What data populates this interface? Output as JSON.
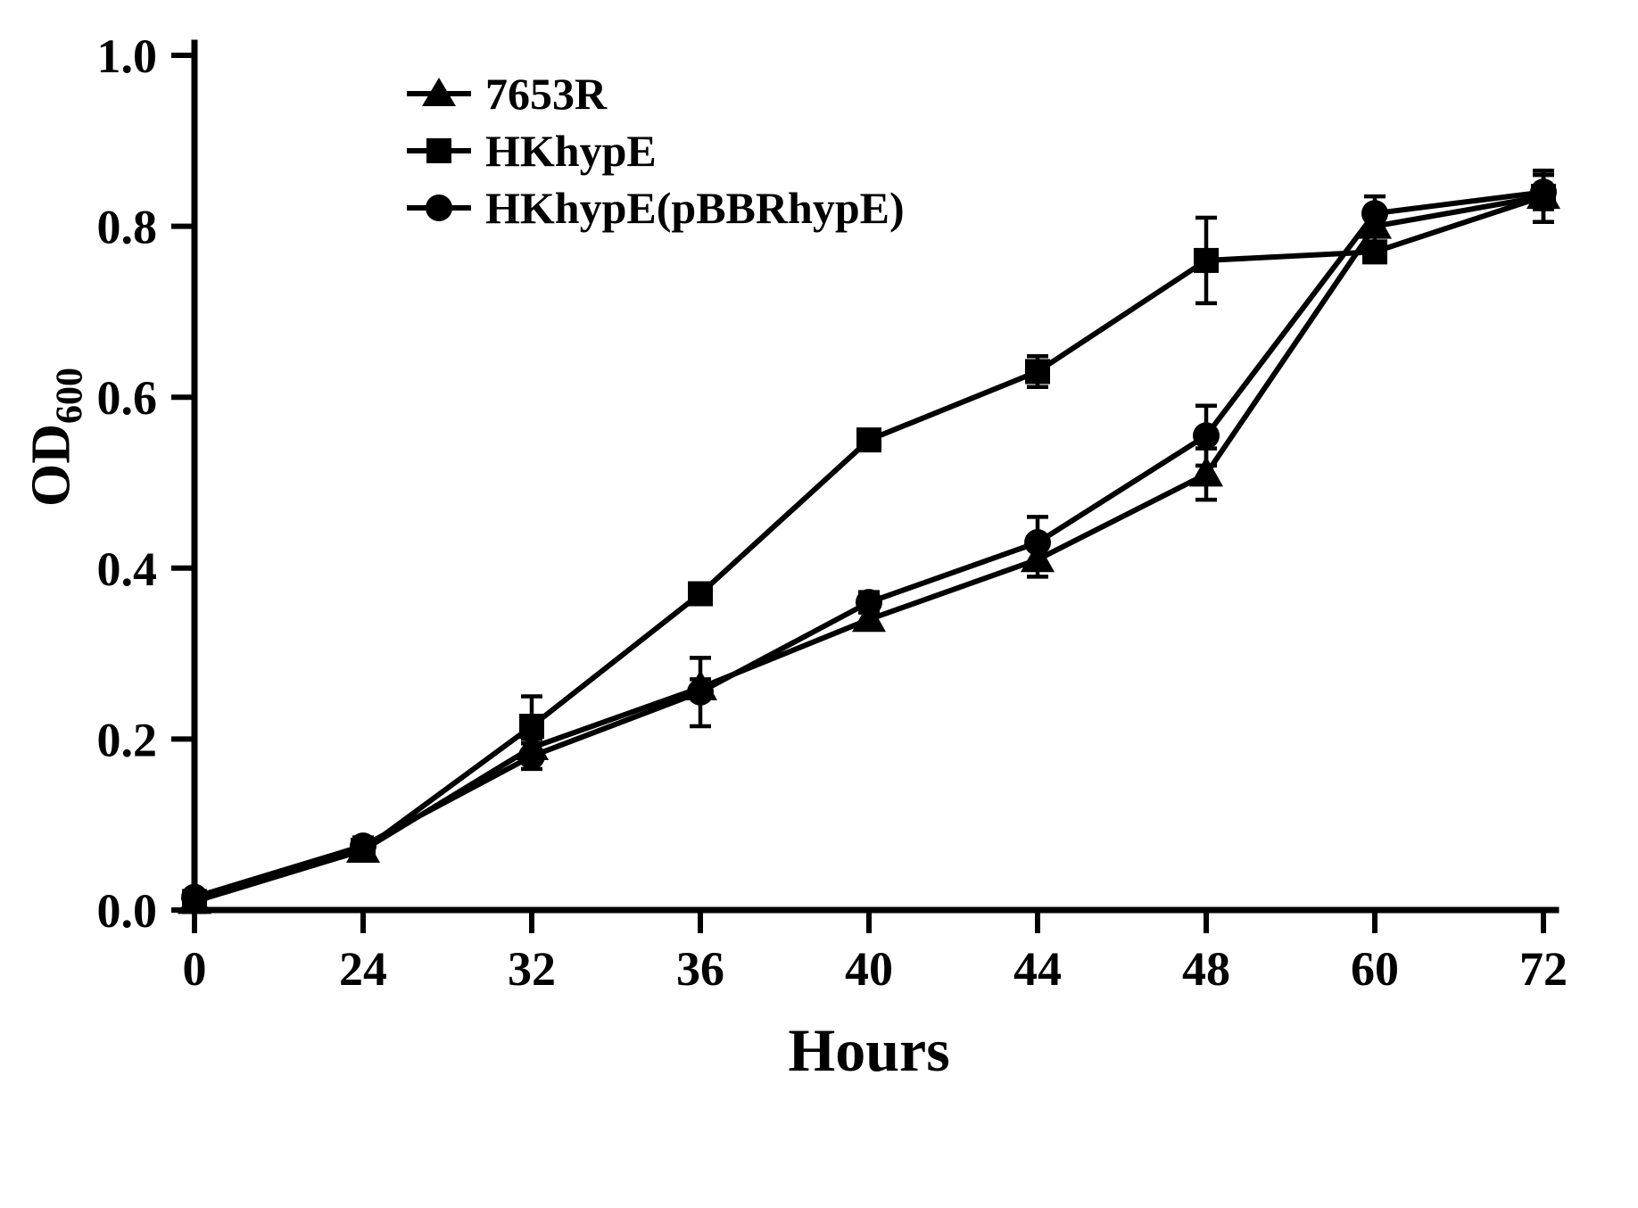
{
  "figure": {
    "background": "#ffffff",
    "ink_color": "#000000"
  },
  "chart_data": {
    "type": "line",
    "title": "",
    "xlabel": "Hours",
    "ylabel": "OD",
    "ylabel_subscript": "600",
    "categories": [
      0,
      24,
      32,
      36,
      40,
      44,
      48,
      60,
      72
    ],
    "x_axis_note": "categorical equal spacing",
    "ylim": [
      0.0,
      1.0
    ],
    "yticks": [
      "0.0",
      "0.2",
      "0.4",
      "0.6",
      "0.8",
      "1.0"
    ],
    "grid": false,
    "legend_position": "upper-left-inside",
    "error_bars": true,
    "series": [
      {
        "name": "7653R",
        "marker": "triangle",
        "color": "#000000",
        "values": [
          0.01,
          0.07,
          0.19,
          0.26,
          0.34,
          0.41,
          0.51,
          0.8,
          0.835
        ],
        "errors": [
          0,
          0.01,
          0.01,
          0.01,
          0.012,
          0.02,
          0.03,
          0.02,
          0.03
        ]
      },
      {
        "name": "HKhypE",
        "marker": "square",
        "color": "#000000",
        "values": [
          0.01,
          0.07,
          0.215,
          0.37,
          0.55,
          0.63,
          0.76,
          0.77,
          0.835
        ],
        "errors": [
          0,
          0.01,
          0.035,
          0.012,
          0.01,
          0.018,
          0.05,
          0.012,
          0.03
        ]
      },
      {
        "name": "HKhypE(pBBRhypE)",
        "marker": "circle",
        "color": "#000000",
        "values": [
          0.015,
          0.075,
          0.18,
          0.255,
          0.36,
          0.43,
          0.555,
          0.815,
          0.84
        ],
        "errors": [
          0,
          0.01,
          0.015,
          0.04,
          0.012,
          0.03,
          0.035,
          0.02,
          0.02
        ]
      }
    ]
  }
}
